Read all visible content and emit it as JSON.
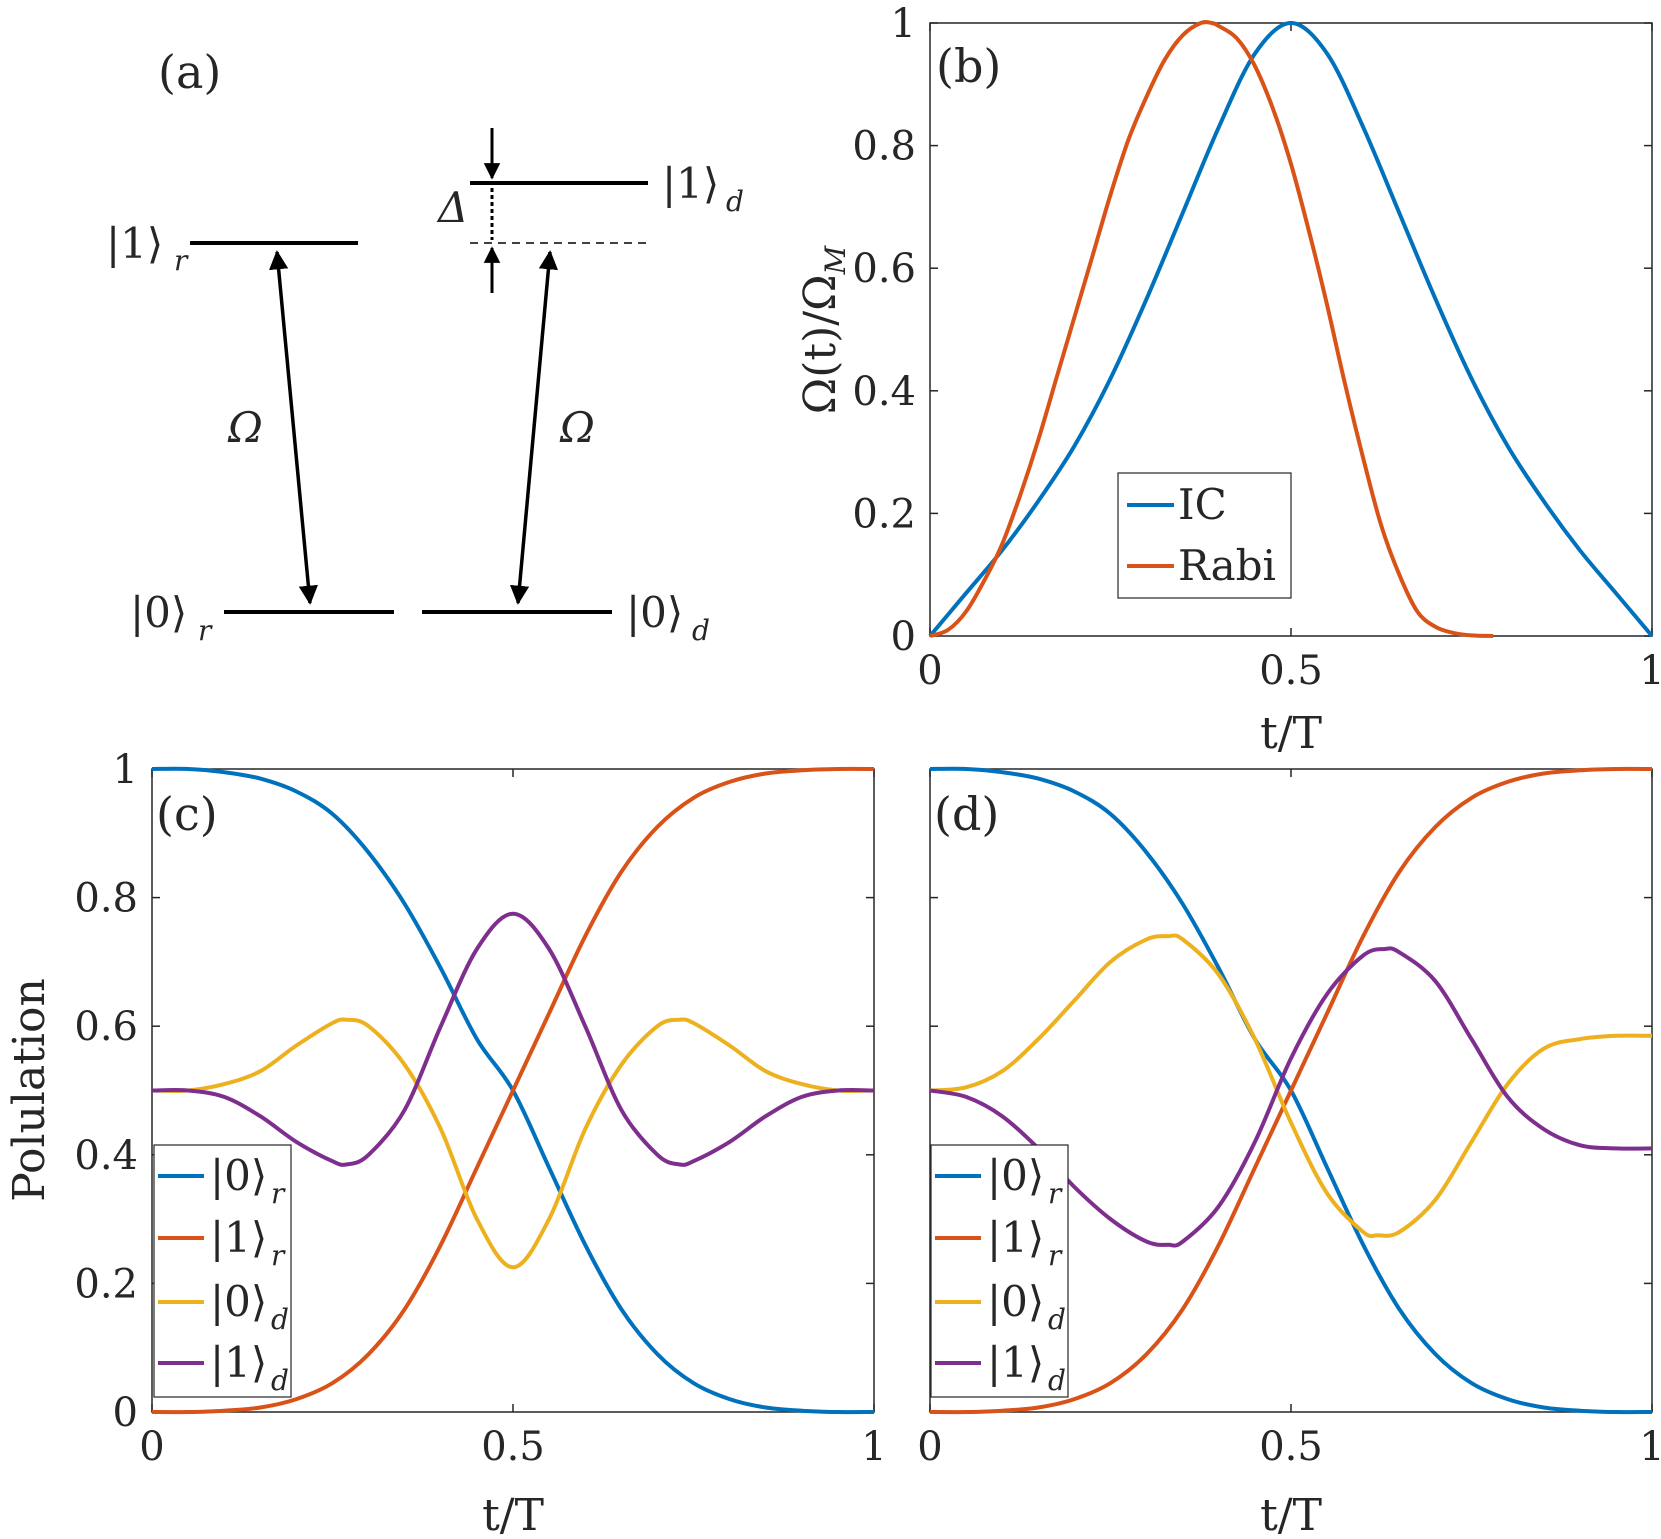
{
  "colors": {
    "blue": "#0072BD",
    "orange": "#D95319",
    "yellow": "#EDB120",
    "purple": "#7E2F8E",
    "axis": "#262626"
  },
  "diagram": {
    "panel_label": "(a)",
    "r_upper": {
      "ket": "1",
      "sub": "r"
    },
    "r_lower": {
      "ket": "0",
      "sub": "r"
    },
    "d_upper": {
      "ket": "1",
      "sub": "d"
    },
    "d_lower": {
      "ket": "0",
      "sub": "d"
    },
    "coupling_left": "Ω",
    "coupling_right": "Ω",
    "detuning": "Δ"
  },
  "chart_data": [
    {
      "id": "b",
      "type": "line",
      "panel_label": "(b)",
      "xlabel": "t/T",
      "ylabel": "Ω(t)/Ω_M",
      "ylabel_parts": {
        "main": "Ω(t)/Ω",
        "sub": "M"
      },
      "xlim": [
        0,
        1
      ],
      "ylim": [
        0,
        1
      ],
      "xticks": [
        0,
        0.5,
        1
      ],
      "xtick_labels": [
        "0",
        "0.5",
        "1"
      ],
      "yticks": [
        0,
        0.2,
        0.4,
        0.6,
        0.8,
        1
      ],
      "ytick_labels": [
        "0",
        "0.2",
        "0.4",
        "0.6",
        "0.8",
        "1"
      ],
      "legend_position": "bottom-center",
      "series": [
        {
          "name": "IC",
          "color": "#0072BD",
          "x": [
            0,
            0.05,
            0.1,
            0.15,
            0.2,
            0.25,
            0.3,
            0.35,
            0.4,
            0.45,
            0.5,
            0.55,
            0.6,
            0.65,
            0.7,
            0.75,
            0.8,
            0.85,
            0.9,
            0.95,
            1.0
          ],
          "values": [
            0,
            0.07,
            0.14,
            0.22,
            0.31,
            0.42,
            0.55,
            0.69,
            0.83,
            0.95,
            1.0,
            0.95,
            0.83,
            0.69,
            0.55,
            0.42,
            0.31,
            0.22,
            0.14,
            0.07,
            0
          ]
        },
        {
          "name": "Rabi",
          "color": "#D95319",
          "x": [
            0,
            0.025,
            0.05,
            0.075,
            0.1,
            0.125,
            0.15,
            0.175,
            0.2,
            0.225,
            0.25,
            0.275,
            0.3,
            0.325,
            0.35,
            0.375,
            0.39,
            0.4,
            0.425,
            0.45,
            0.475,
            0.5,
            0.525,
            0.55,
            0.575,
            0.6,
            0.625,
            0.65,
            0.675,
            0.7,
            0.725,
            0.75,
            0.78
          ],
          "values": [
            0,
            0.01,
            0.04,
            0.09,
            0.15,
            0.23,
            0.32,
            0.42,
            0.52,
            0.62,
            0.72,
            0.81,
            0.88,
            0.94,
            0.98,
            1.0,
            1.0,
            0.995,
            0.975,
            0.93,
            0.86,
            0.77,
            0.66,
            0.54,
            0.41,
            0.29,
            0.18,
            0.1,
            0.04,
            0.015,
            0.005,
            0.001,
            0
          ]
        }
      ]
    },
    {
      "id": "c",
      "type": "line",
      "panel_label": "(c)",
      "xlabel": "t/T",
      "ylabel": "Polulation",
      "xlim": [
        0,
        1
      ],
      "ylim": [
        0,
        1
      ],
      "xticks": [
        0,
        0.5,
        1
      ],
      "xtick_labels": [
        "0",
        "0.5",
        "1"
      ],
      "yticks": [
        0,
        0.2,
        0.4,
        0.6,
        0.8,
        1
      ],
      "ytick_labels": [
        "0",
        "0.2",
        "0.4",
        "0.6",
        "0.8",
        "1"
      ],
      "legend_position": "bottom-left",
      "series": [
        {
          "name": "|0⟩_r",
          "ket": "0",
          "sub": "r",
          "color": "#0072BD",
          "x": [
            0,
            0.05,
            0.1,
            0.15,
            0.2,
            0.25,
            0.3,
            0.35,
            0.4,
            0.45,
            0.5,
            0.55,
            0.6,
            0.65,
            0.7,
            0.75,
            0.8,
            0.85,
            0.9,
            0.95,
            1.0
          ],
          "values": [
            1.0,
            1.0,
            0.995,
            0.985,
            0.965,
            0.93,
            0.87,
            0.79,
            0.69,
            0.58,
            0.5,
            0.38,
            0.26,
            0.16,
            0.09,
            0.045,
            0.02,
            0.007,
            0.002,
            0,
            0
          ]
        },
        {
          "name": "|1⟩_r",
          "ket": "1",
          "sub": "r",
          "color": "#D95319",
          "x": [
            0,
            0.05,
            0.1,
            0.15,
            0.2,
            0.25,
            0.3,
            0.35,
            0.4,
            0.45,
            0.5,
            0.55,
            0.6,
            0.65,
            0.7,
            0.75,
            0.8,
            0.85,
            0.9,
            0.95,
            1.0
          ],
          "values": [
            0,
            0,
            0.002,
            0.007,
            0.02,
            0.045,
            0.09,
            0.16,
            0.26,
            0.38,
            0.5,
            0.62,
            0.74,
            0.84,
            0.91,
            0.955,
            0.98,
            0.993,
            0.998,
            1.0,
            1.0
          ]
        },
        {
          "name": "|0⟩_d",
          "ket": "0",
          "sub": "d",
          "color": "#EDB120",
          "x": [
            0,
            0.05,
            0.1,
            0.15,
            0.2,
            0.25,
            0.27,
            0.3,
            0.35,
            0.4,
            0.45,
            0.5,
            0.55,
            0.6,
            0.65,
            0.7,
            0.73,
            0.75,
            0.8,
            0.85,
            0.9,
            0.95,
            1.0
          ],
          "values": [
            0.5,
            0.5,
            0.51,
            0.53,
            0.57,
            0.605,
            0.61,
            0.6,
            0.54,
            0.44,
            0.3,
            0.225,
            0.3,
            0.44,
            0.54,
            0.6,
            0.61,
            0.605,
            0.57,
            0.53,
            0.51,
            0.5,
            0.5
          ]
        },
        {
          "name": "|1⟩_d",
          "ket": "1",
          "sub": "d",
          "color": "#7E2F8E",
          "x": [
            0,
            0.05,
            0.1,
            0.15,
            0.2,
            0.25,
            0.27,
            0.3,
            0.35,
            0.4,
            0.45,
            0.5,
            0.55,
            0.6,
            0.65,
            0.7,
            0.73,
            0.75,
            0.8,
            0.85,
            0.9,
            0.95,
            1.0
          ],
          "values": [
            0.5,
            0.5,
            0.49,
            0.46,
            0.42,
            0.39,
            0.385,
            0.4,
            0.47,
            0.6,
            0.72,
            0.775,
            0.72,
            0.6,
            0.47,
            0.4,
            0.385,
            0.39,
            0.42,
            0.46,
            0.49,
            0.5,
            0.5
          ]
        }
      ]
    },
    {
      "id": "d",
      "type": "line",
      "panel_label": "(d)",
      "xlabel": "t/T",
      "ylabel": "",
      "xlim": [
        0,
        1
      ],
      "ylim": [
        0,
        1
      ],
      "xticks": [
        0,
        0.5,
        1
      ],
      "xtick_labels": [
        "0",
        "0.5",
        "1"
      ],
      "yticks": [
        0,
        0.2,
        0.4,
        0.6,
        0.8,
        1
      ],
      "ytick_labels": [],
      "legend_position": "bottom-left",
      "series": [
        {
          "name": "|0⟩_r",
          "ket": "0",
          "sub": "r",
          "color": "#0072BD",
          "x": [
            0,
            0.05,
            0.1,
            0.15,
            0.2,
            0.25,
            0.3,
            0.35,
            0.4,
            0.45,
            0.5,
            0.55,
            0.6,
            0.65,
            0.7,
            0.75,
            0.8,
            0.85,
            0.9,
            0.95,
            1.0
          ],
          "values": [
            1.0,
            1.0,
            0.995,
            0.985,
            0.965,
            0.93,
            0.87,
            0.79,
            0.69,
            0.58,
            0.5,
            0.38,
            0.26,
            0.16,
            0.09,
            0.045,
            0.02,
            0.007,
            0.002,
            0,
            0
          ]
        },
        {
          "name": "|1⟩_r",
          "ket": "1",
          "sub": "r",
          "color": "#D95319",
          "x": [
            0,
            0.05,
            0.1,
            0.15,
            0.2,
            0.25,
            0.3,
            0.35,
            0.4,
            0.45,
            0.5,
            0.55,
            0.6,
            0.65,
            0.7,
            0.75,
            0.8,
            0.85,
            0.9,
            0.95,
            1.0
          ],
          "values": [
            0,
            0,
            0.002,
            0.007,
            0.02,
            0.045,
            0.09,
            0.16,
            0.26,
            0.38,
            0.5,
            0.62,
            0.74,
            0.84,
            0.91,
            0.955,
            0.98,
            0.993,
            0.998,
            1.0,
            1.0
          ]
        },
        {
          "name": "|0⟩_d",
          "ket": "0",
          "sub": "d",
          "color": "#EDB120",
          "x": [
            0,
            0.05,
            0.1,
            0.15,
            0.2,
            0.25,
            0.3,
            0.33,
            0.35,
            0.4,
            0.45,
            0.5,
            0.55,
            0.6,
            0.62,
            0.65,
            0.7,
            0.75,
            0.8,
            0.85,
            0.9,
            0.95,
            1.0
          ],
          "values": [
            0.5,
            0.505,
            0.53,
            0.58,
            0.64,
            0.7,
            0.735,
            0.74,
            0.735,
            0.68,
            0.58,
            0.45,
            0.34,
            0.28,
            0.275,
            0.28,
            0.33,
            0.42,
            0.51,
            0.565,
            0.58,
            0.585,
            0.585
          ]
        },
        {
          "name": "|1⟩_d",
          "ket": "1",
          "sub": "d",
          "color": "#7E2F8E",
          "x": [
            0,
            0.05,
            0.1,
            0.15,
            0.2,
            0.25,
            0.3,
            0.33,
            0.35,
            0.4,
            0.45,
            0.5,
            0.55,
            0.6,
            0.63,
            0.65,
            0.7,
            0.75,
            0.8,
            0.85,
            0.9,
            0.95,
            1.0
          ],
          "values": [
            0.5,
            0.49,
            0.46,
            0.41,
            0.35,
            0.3,
            0.265,
            0.26,
            0.265,
            0.32,
            0.42,
            0.55,
            0.65,
            0.71,
            0.72,
            0.715,
            0.67,
            0.58,
            0.49,
            0.44,
            0.415,
            0.41,
            0.41
          ]
        }
      ]
    }
  ]
}
